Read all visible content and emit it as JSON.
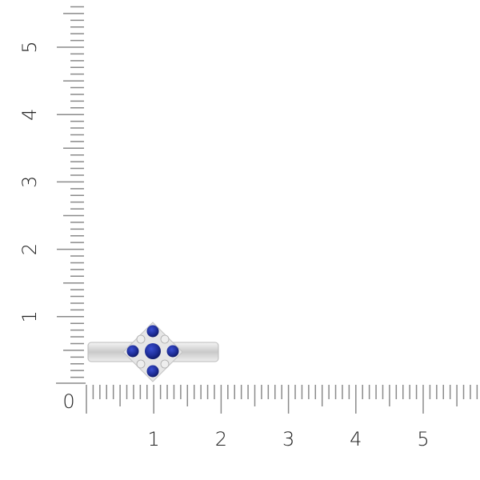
{
  "ruler": {
    "origin_label": "0",
    "x_labels": [
      "1",
      "2",
      "3",
      "4",
      "5"
    ],
    "y_labels": [
      "1",
      "2",
      "3",
      "4",
      "5"
    ],
    "tick_color": "#8a8a8a",
    "label_color": "#222222"
  },
  "product": {
    "metal_color": "#d9d9d9",
    "gem_color": "#1f2f9a",
    "accent_stone_color": "#eeeeee",
    "center_stones": 1,
    "side_sapphires": 4,
    "accent_diamonds": 4
  }
}
